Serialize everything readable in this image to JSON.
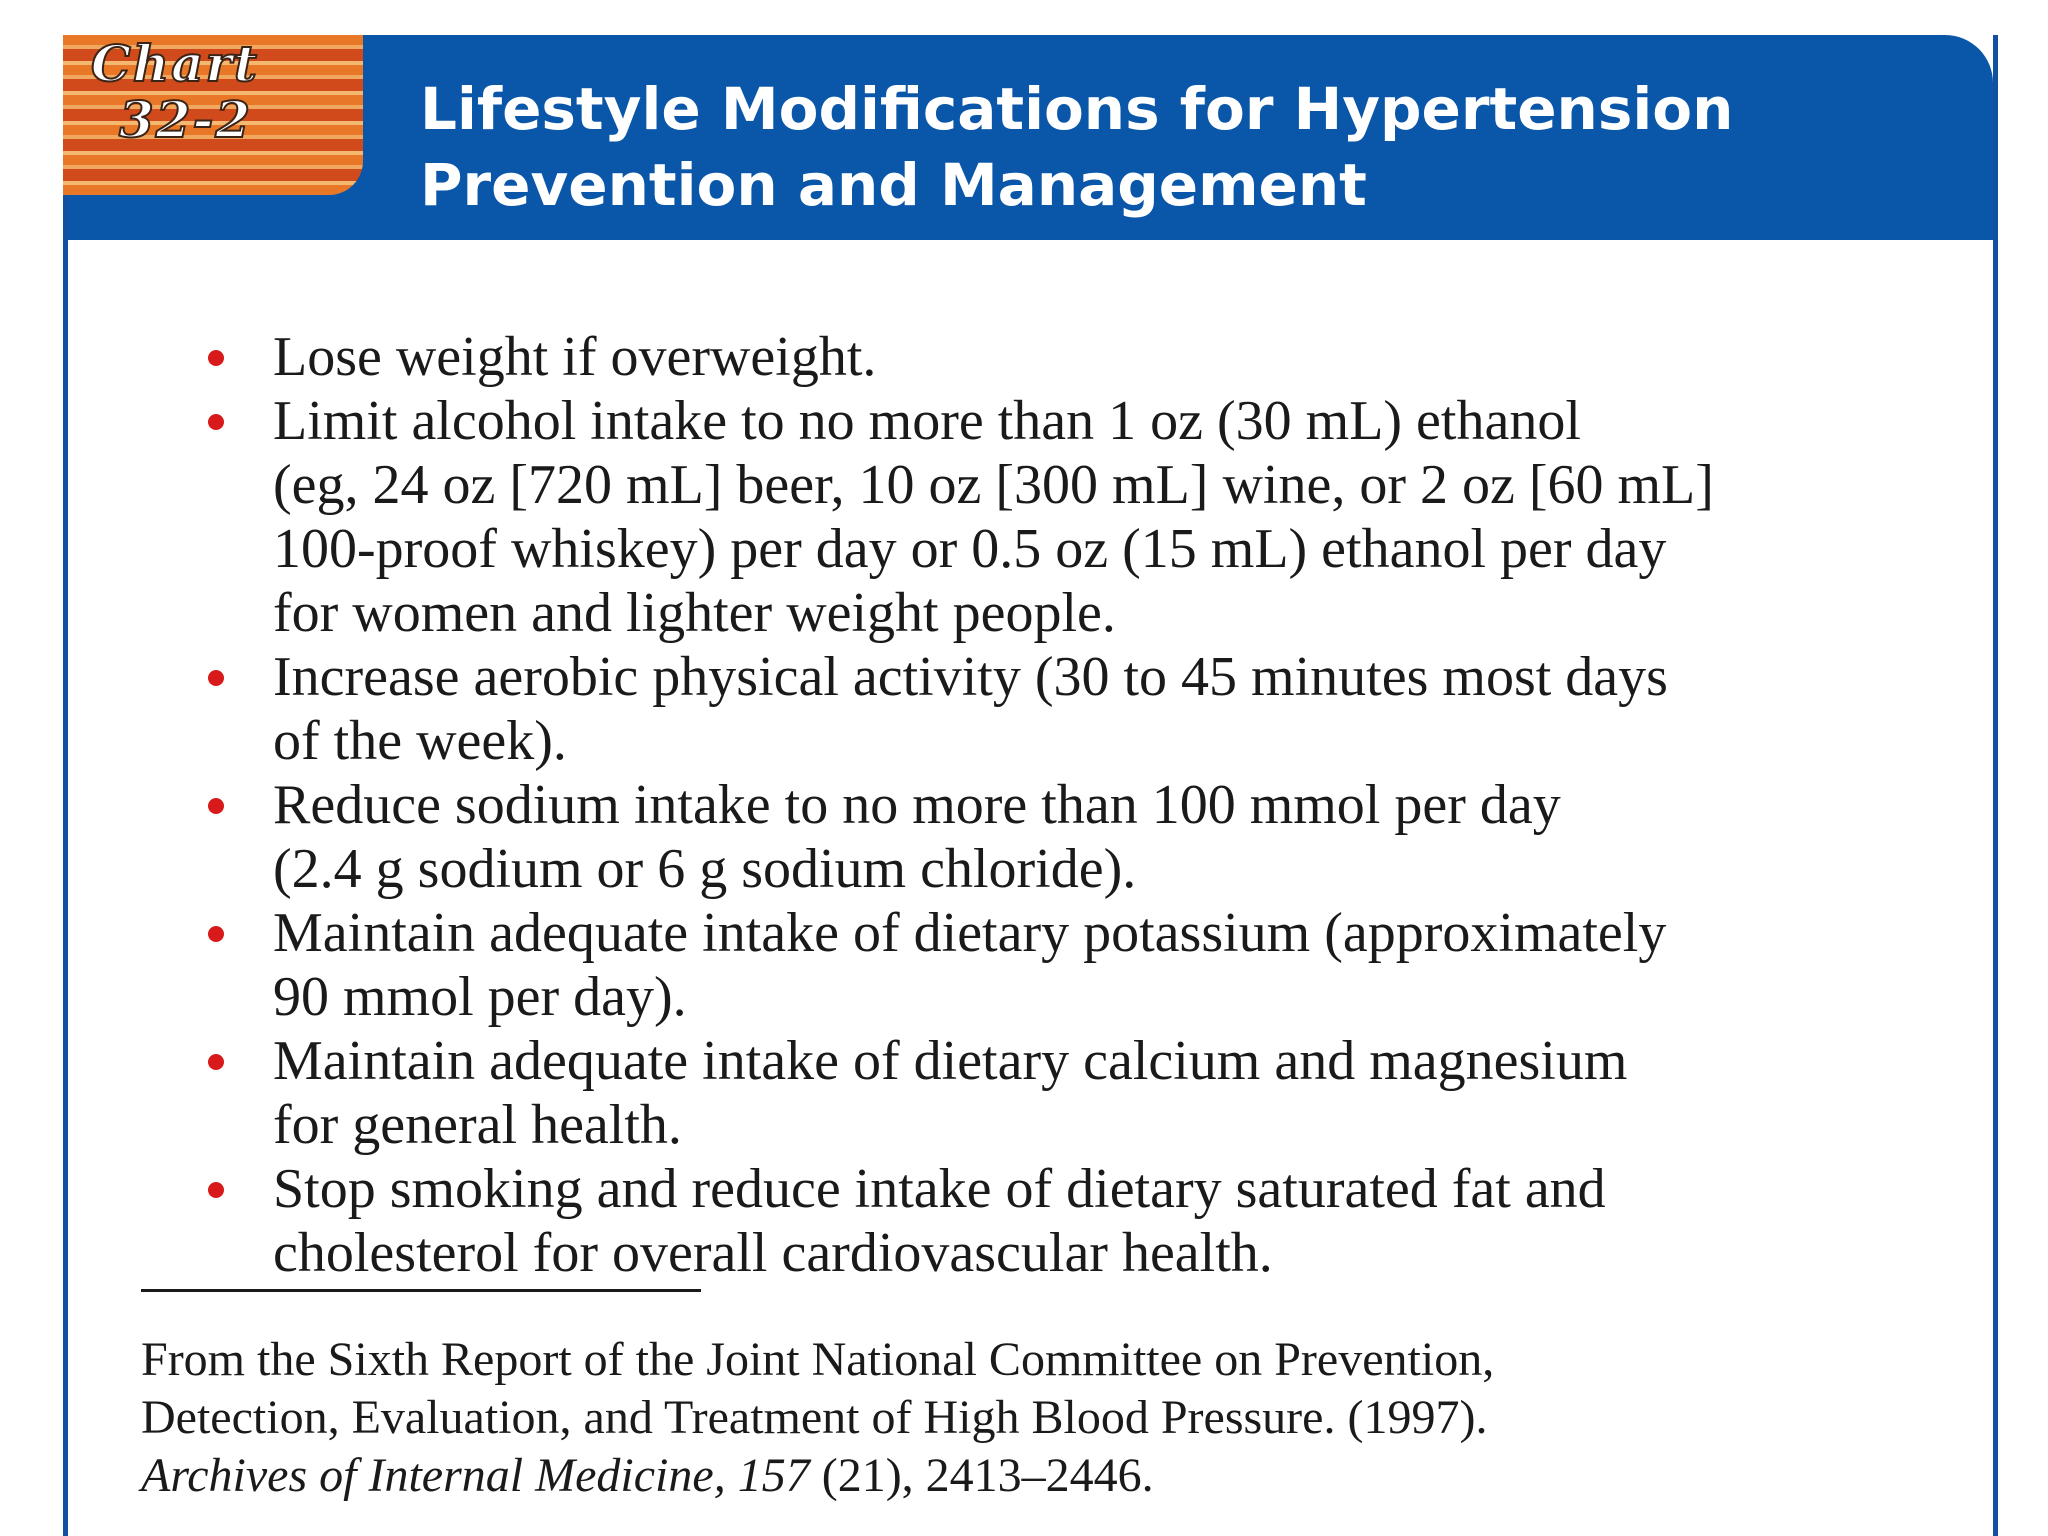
{
  "tag": {
    "line1": "Chart",
    "line2": "32-2"
  },
  "title": {
    "line1": "Lifestyle Modifications for Hypertension",
    "line2": "Prevention and Management"
  },
  "items": [
    {
      "lines": [
        "Lose weight if overweight."
      ]
    },
    {
      "lines": [
        "Limit alcohol intake to no more than 1 oz (30 mL) ethanol",
        "(eg, 24 oz [720 mL] beer, 10 oz [300 mL] wine, or 2 oz [60 mL]",
        "100-proof whiskey) per day or 0.5 oz (15 mL) ethanol per day",
        "for women and lighter weight people."
      ]
    },
    {
      "lines": [
        "Increase aerobic physical activity (30 to 45 minutes most days",
        "of the week)."
      ]
    },
    {
      "lines": [
        "Reduce sodium intake to no more than 100 mmol per day",
        "(2.4 g sodium or 6 g sodium chloride)."
      ]
    },
    {
      "lines": [
        "Maintain adequate intake of dietary potassium (approximately",
        "90 mmol per day)."
      ]
    },
    {
      "lines": [
        "Maintain adequate intake of dietary calcium and magnesium",
        "for general health."
      ]
    },
    {
      "lines": [
        "Stop smoking and reduce intake of dietary saturated fat and",
        "cholesterol for overall cardiovascular health."
      ]
    }
  ],
  "source": {
    "line1": "From the Sixth Report of the Joint National Committee on Prevention,",
    "line2": "Detection, Evaluation, and Treatment of High Blood Pressure. (1997).",
    "journal": "Archives of Internal Medicine, 157",
    "rest": " (21), 2413–2446."
  },
  "colors": {
    "header": "#0a56a8",
    "bullet": "#d81a1a",
    "tag_orange": "#e87828"
  }
}
